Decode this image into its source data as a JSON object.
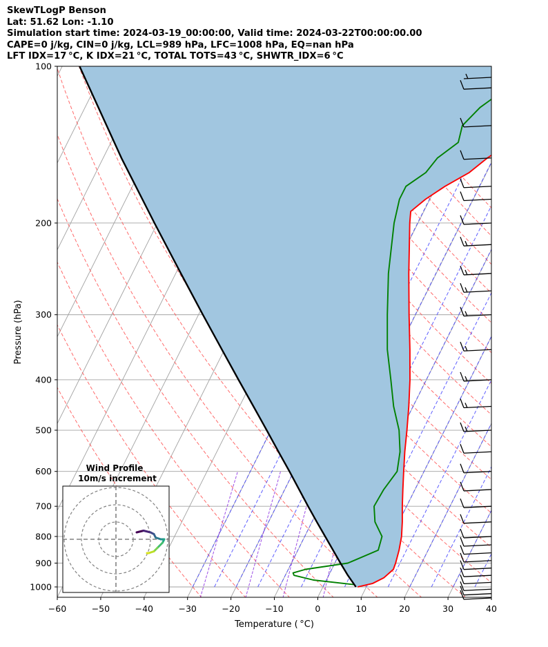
{
  "header": {
    "line1": "SkewTLogP Benson",
    "line2": "Lat: 51.62   Lon: -1.10",
    "line3": "Simulation start time: 2024-03-19_00:00:00, Valid time: 2024-03-22T00:00:00.00",
    "line4": "CAPE=0 j/kg, CIN=0 j/kg, LCL=989 hPa, LFC=1008 hPa, EQ=nan hPa",
    "line5": "LFT IDX=17 °C, K IDX=21 °C, TOTAL TOTS=43 °C, SHWTR_IDX=6 °C"
  },
  "axes": {
    "xlabel": "Temperature ( °C)",
    "ylabel": "Pressure (hPa)",
    "x_ticks": [
      -60,
      -50,
      -40,
      -30,
      -20,
      -10,
      0,
      10,
      20,
      30,
      40
    ],
    "y_ticks": [
      100,
      200,
      300,
      400,
      500,
      600,
      700,
      800,
      900,
      1000
    ]
  },
  "hodograph": {
    "title": "Wind Profile",
    "subtitle": "10m/s increment"
  },
  "colors": {
    "temperature": "#ff0000",
    "dewpoint": "#008000",
    "parcel": "#000000",
    "cape_fill": "#a1c6e0",
    "dry_adiabats": "#ff5050",
    "moist_adiabats": "#4040ff",
    "mixing_ratio": "#8a2be2",
    "isotherms": "#a0a0a0"
  },
  "chart_data": {
    "type": "skewt",
    "xlim": [
      -60,
      40
    ],
    "ylim": [
      1050,
      100
    ],
    "yscale": "log",
    "grid": true,
    "series": [
      {
        "key": "temperature",
        "points": [
          [
            1000,
            8
          ],
          [
            985,
            11
          ],
          [
            960,
            13
          ],
          [
            925,
            14.2
          ],
          [
            900,
            14
          ],
          [
            850,
            13.3
          ],
          [
            800,
            12.3
          ],
          [
            750,
            10.8
          ],
          [
            700,
            9
          ],
          [
            650,
            7.2
          ],
          [
            600,
            5.3
          ],
          [
            550,
            3.3
          ],
          [
            500,
            1.3
          ],
          [
            450,
            -1
          ],
          [
            400,
            -3.8
          ],
          [
            350,
            -7.3
          ],
          [
            300,
            -11.5
          ],
          [
            250,
            -16.3
          ],
          [
            200,
            -21.9
          ],
          [
            190,
            -23
          ],
          [
            180,
            -21
          ],
          [
            170,
            -18
          ],
          [
            160,
            -14
          ],
          [
            150,
            -11.5
          ],
          [
            140,
            -8
          ],
          [
            130,
            -7
          ],
          [
            120,
            -4.5
          ],
          [
            110,
            -2.5
          ],
          [
            100,
            -3.2
          ]
        ]
      },
      {
        "key": "dewpoint",
        "points": [
          [
            990,
            7
          ],
          [
            970,
            -3
          ],
          [
            950,
            -8
          ],
          [
            940,
            -8.5
          ],
          [
            925,
            -6
          ],
          [
            900,
            3
          ],
          [
            850,
            8.5
          ],
          [
            800,
            7.8
          ],
          [
            750,
            4.5
          ],
          [
            700,
            2.5
          ],
          [
            650,
            2.8
          ],
          [
            600,
            3.8
          ],
          [
            550,
            2.2
          ],
          [
            500,
            -0.5
          ],
          [
            450,
            -4.5
          ],
          [
            400,
            -8.2
          ],
          [
            350,
            -12.5
          ],
          [
            300,
            -16.5
          ],
          [
            250,
            -21
          ],
          [
            200,
            -25.5
          ],
          [
            180,
            -27
          ],
          [
            170,
            -27
          ],
          [
            160,
            -24
          ],
          [
            150,
            -23
          ],
          [
            140,
            -20
          ],
          [
            130,
            -21
          ],
          [
            120,
            -19
          ],
          [
            110,
            -15
          ],
          [
            100,
            -12
          ]
        ]
      },
      {
        "key": "parcel",
        "points": [
          [
            1000,
            7.6
          ],
          [
            950,
            4.4
          ],
          [
            900,
            1.3
          ],
          [
            850,
            -1.9
          ],
          [
            800,
            -5.3
          ],
          [
            750,
            -8.9
          ],
          [
            700,
            -12.7
          ],
          [
            650,
            -16.7
          ],
          [
            600,
            -21
          ],
          [
            550,
            -25.8
          ],
          [
            500,
            -31
          ],
          [
            450,
            -36.8
          ],
          [
            400,
            -43.3
          ],
          [
            350,
            -50.6
          ],
          [
            300,
            -59
          ],
          [
            250,
            -68.8
          ],
          [
            200,
            -80.7
          ],
          [
            150,
            -95.8
          ],
          [
            100,
            -116
          ]
        ]
      }
    ],
    "wind_barbs": {
      "pressures": [
        1050,
        1030,
        1010,
        980,
        950,
        920,
        890,
        860,
        830,
        800,
        750,
        700,
        650,
        600,
        550,
        500,
        450,
        400,
        350,
        300,
        270,
        250,
        220,
        200,
        180,
        170,
        150,
        130,
        110,
        105
      ],
      "speeds_kt": [
        10,
        10,
        10,
        10,
        10,
        10,
        10,
        10,
        10,
        10,
        10,
        10,
        10,
        10,
        10,
        15,
        15,
        15,
        15,
        15,
        15,
        15,
        15,
        10,
        10,
        10,
        10,
        10,
        10,
        5
      ]
    },
    "hodograph": {
      "rings_ms": [
        10,
        20,
        30
      ],
      "points": [
        [
          -12,
          4
        ],
        [
          -8,
          5
        ],
        [
          -4,
          4
        ],
        [
          -2,
          3
        ],
        [
          -1,
          1
        ],
        [
          2,
          0
        ],
        [
          4,
          0
        ],
        [
          3,
          -2
        ],
        [
          0,
          -5
        ],
        [
          -2,
          -7
        ],
        [
          -5,
          -8
        ],
        [
          -6,
          -8
        ]
      ]
    }
  }
}
